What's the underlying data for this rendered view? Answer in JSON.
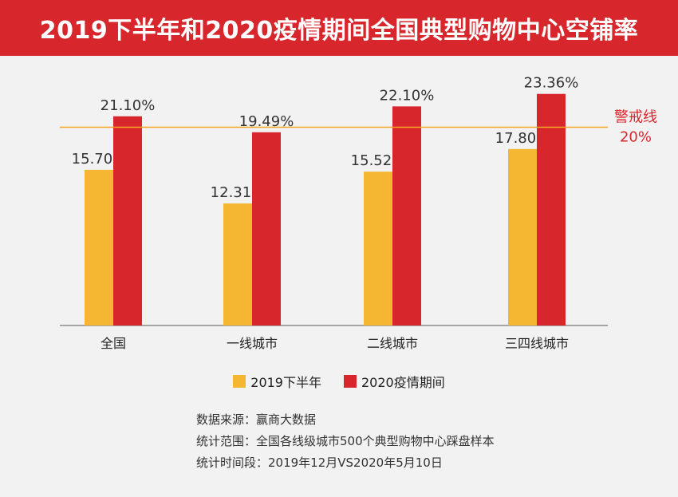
{
  "title": "2019下半年和2020疫情期间全国典型购物中心空铺率",
  "chart_data": {
    "type": "bar",
    "categories": [
      "全国",
      "一线城市",
      "二线城市",
      "三四线城市"
    ],
    "series": [
      {
        "name": "2019下半年",
        "values": [
          15.7,
          12.31,
          15.52,
          17.8
        ],
        "labels": [
          "15.70%",
          "12.31%",
          "15.52%",
          "17.80%"
        ],
        "color": "#f5b731"
      },
      {
        "name": "2020疫情期间",
        "values": [
          21.1,
          19.49,
          22.1,
          23.36
        ],
        "labels": [
          "21.10%",
          "19.49%",
          "22.10%",
          "23.36%"
        ],
        "color": "#d7262c"
      }
    ],
    "ylim": [
      0,
      27.2
    ],
    "reference_line": {
      "value": 20,
      "label": "警戒线",
      "value_label": "20%",
      "color": "#f5a623",
      "text_color": "#d7262c"
    }
  },
  "notes": [
    "数据来源：赢商大数据",
    "统计范围：全国各线级城市500个典型购物中心踩盘样本",
    "统计时间段：2019年12月VS2020年5月10日"
  ]
}
